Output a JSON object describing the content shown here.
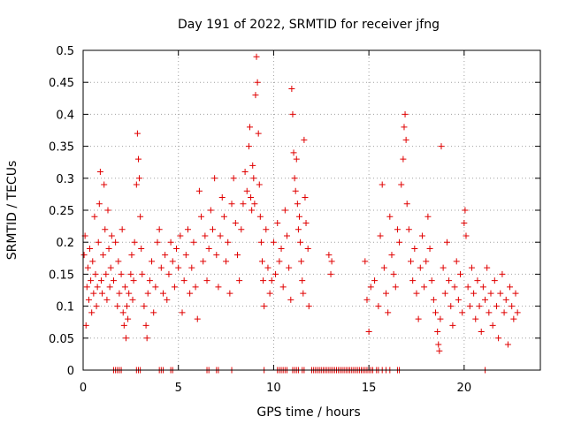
{
  "chart_data": {
    "type": "scatter",
    "title": "Day 191 of 2022, SRMTID for receiver jfng",
    "xlabel": "GPS time / hours",
    "ylabel": "SRMTID / TECUs",
    "xlim": [
      0,
      24
    ],
    "ylim": [
      0,
      0.5
    ],
    "x_ticks": [
      0,
      5,
      10,
      15,
      20
    ],
    "x_tick_labels": [
      "0",
      "5",
      "10",
      "15",
      "20"
    ],
    "y_ticks": [
      0,
      0.05,
      0.1,
      0.15,
      0.2,
      0.25,
      0.3,
      0.35,
      0.4,
      0.45,
      0.5
    ],
    "y_tick_labels": [
      "0",
      "0.05",
      "0.1",
      "0.15",
      "0.2",
      "0.25",
      "0.3",
      "0.35",
      "0.4",
      "0.45",
      "0.5"
    ],
    "grid": true,
    "marker": "+",
    "marker_color": "#e00000",
    "series": [
      {
        "name": "SRMTID",
        "points": [
          [
            0.05,
            0.18
          ],
          [
            0.1,
            0.21
          ],
          [
            0.15,
            0.07
          ],
          [
            0.2,
            0.13
          ],
          [
            0.25,
            0.16
          ],
          [
            0.3,
            0.11
          ],
          [
            0.35,
            0.19
          ],
          [
            0.4,
            0.14
          ],
          [
            0.45,
            0.09
          ],
          [
            0.5,
            0.17
          ],
          [
            0.55,
            0.12
          ],
          [
            0.6,
            0.24
          ],
          [
            0.65,
            0.15
          ],
          [
            0.7,
            0.1
          ],
          [
            0.75,
            0.13
          ],
          [
            0.8,
            0.2
          ],
          [
            0.85,
            0.26
          ],
          [
            0.9,
            0.31
          ],
          [
            0.95,
            0.14
          ],
          [
            1.0,
            0.12
          ],
          [
            1.05,
            0.18
          ],
          [
            1.1,
            0.29
          ],
          [
            1.15,
            0.22
          ],
          [
            1.2,
            0.15
          ],
          [
            1.25,
            0.11
          ],
          [
            1.3,
            0.25
          ],
          [
            1.35,
            0.19
          ],
          [
            1.4,
            0.13
          ],
          [
            1.45,
            0.16
          ],
          [
            1.5,
            0.21
          ],
          [
            1.6,
            0.14
          ],
          [
            1.7,
            0.2
          ],
          [
            1.8,
            0.1
          ],
          [
            1.85,
            0.17
          ],
          [
            1.9,
            0.12
          ],
          [
            2.0,
            0.15
          ],
          [
            2.05,
            0.22
          ],
          [
            2.1,
            0.09
          ],
          [
            2.15,
            0.07
          ],
          [
            2.2,
            0.13
          ],
          [
            2.25,
            0.05
          ],
          [
            2.3,
            0.1
          ],
          [
            2.35,
            0.08
          ],
          [
            2.4,
            0.12
          ],
          [
            2.5,
            0.15
          ],
          [
            2.55,
            0.18
          ],
          [
            2.6,
            0.11
          ],
          [
            2.65,
            0.14
          ],
          [
            2.7,
            0.2
          ],
          [
            2.8,
            0.29
          ],
          [
            2.85,
            0.37
          ],
          [
            2.9,
            0.33
          ],
          [
            2.95,
            0.3
          ],
          [
            3.0,
            0.24
          ],
          [
            3.05,
            0.19
          ],
          [
            3.1,
            0.15
          ],
          [
            3.2,
            0.1
          ],
          [
            3.3,
            0.07
          ],
          [
            3.35,
            0.05
          ],
          [
            3.4,
            0.12
          ],
          [
            3.5,
            0.14
          ],
          [
            3.6,
            0.17
          ],
          [
            3.7,
            0.09
          ],
          [
            3.8,
            0.13
          ],
          [
            3.9,
            0.2
          ],
          [
            4.0,
            0.22
          ],
          [
            4.1,
            0.16
          ],
          [
            4.2,
            0.12
          ],
          [
            4.3,
            0.18
          ],
          [
            4.4,
            0.11
          ],
          [
            4.5,
            0.15
          ],
          [
            4.6,
            0.2
          ],
          [
            4.7,
            0.17
          ],
          [
            4.8,
            0.13
          ],
          [
            4.9,
            0.19
          ],
          [
            5.0,
            0.16
          ],
          [
            5.1,
            0.21
          ],
          [
            5.2,
            0.09
          ],
          [
            5.3,
            0.14
          ],
          [
            5.4,
            0.18
          ],
          [
            5.5,
            0.22
          ],
          [
            5.6,
            0.12
          ],
          [
            5.7,
            0.16
          ],
          [
            5.8,
            0.2
          ],
          [
            5.9,
            0.13
          ],
          [
            6.0,
            0.08
          ],
          [
            6.1,
            0.28
          ],
          [
            6.2,
            0.24
          ],
          [
            6.3,
            0.17
          ],
          [
            6.4,
            0.21
          ],
          [
            6.5,
            0.14
          ],
          [
            6.6,
            0.19
          ],
          [
            6.7,
            0.25
          ],
          [
            6.8,
            0.22
          ],
          [
            6.9,
            0.3
          ],
          [
            7.0,
            0.18
          ],
          [
            7.1,
            0.13
          ],
          [
            7.2,
            0.21
          ],
          [
            7.3,
            0.27
          ],
          [
            7.4,
            0.24
          ],
          [
            7.5,
            0.17
          ],
          [
            7.6,
            0.2
          ],
          [
            7.7,
            0.12
          ],
          [
            7.8,
            0.26
          ],
          [
            7.9,
            0.3
          ],
          [
            8.0,
            0.23
          ],
          [
            8.1,
            0.18
          ],
          [
            8.2,
            0.14
          ],
          [
            8.3,
            0.22
          ],
          [
            8.4,
            0.26
          ],
          [
            8.5,
            0.31
          ],
          [
            8.6,
            0.28
          ],
          [
            8.7,
            0.35
          ],
          [
            8.75,
            0.38
          ],
          [
            8.8,
            0.27
          ],
          [
            8.85,
            0.25
          ],
          [
            8.9,
            0.32
          ],
          [
            8.95,
            0.3
          ],
          [
            9.0,
            0.26
          ],
          [
            9.05,
            0.43
          ],
          [
            9.1,
            0.49
          ],
          [
            9.15,
            0.45
          ],
          [
            9.2,
            0.37
          ],
          [
            9.25,
            0.29
          ],
          [
            9.3,
            0.24
          ],
          [
            9.35,
            0.2
          ],
          [
            9.4,
            0.17
          ],
          [
            9.45,
            0.14
          ],
          [
            9.5,
            0.1
          ],
          [
            9.6,
            0.22
          ],
          [
            9.7,
            0.16
          ],
          [
            9.8,
            0.12
          ],
          [
            9.9,
            0.14
          ],
          [
            10.0,
            0.2
          ],
          [
            10.1,
            0.15
          ],
          [
            10.2,
            0.23
          ],
          [
            10.3,
            0.17
          ],
          [
            10.4,
            0.19
          ],
          [
            10.5,
            0.13
          ],
          [
            10.6,
            0.25
          ],
          [
            10.7,
            0.21
          ],
          [
            10.8,
            0.16
          ],
          [
            10.9,
            0.11
          ],
          [
            10.95,
            0.44
          ],
          [
            11.0,
            0.4
          ],
          [
            11.05,
            0.34
          ],
          [
            11.1,
            0.3
          ],
          [
            11.15,
            0.28
          ],
          [
            11.2,
            0.33
          ],
          [
            11.25,
            0.26
          ],
          [
            11.3,
            0.22
          ],
          [
            11.35,
            0.24
          ],
          [
            11.4,
            0.2
          ],
          [
            11.45,
            0.17
          ],
          [
            11.5,
            0.14
          ],
          [
            11.55,
            0.12
          ],
          [
            11.6,
            0.36
          ],
          [
            11.65,
            0.27
          ],
          [
            11.7,
            0.23
          ],
          [
            11.8,
            0.19
          ],
          [
            11.85,
            0.1
          ],
          [
            12.9,
            0.18
          ],
          [
            13.0,
            0.15
          ],
          [
            13.05,
            0.17
          ],
          [
            14.8,
            0.17
          ],
          [
            14.9,
            0.11
          ],
          [
            15.0,
            0.06
          ],
          [
            15.1,
            0.13
          ],
          [
            15.3,
            0.14
          ],
          [
            15.5,
            0.1
          ],
          [
            15.6,
            0.21
          ],
          [
            15.7,
            0.29
          ],
          [
            15.8,
            0.16
          ],
          [
            15.9,
            0.12
          ],
          [
            16.0,
            0.09
          ],
          [
            16.1,
            0.24
          ],
          [
            16.2,
            0.18
          ],
          [
            16.3,
            0.15
          ],
          [
            16.4,
            0.13
          ],
          [
            16.5,
            0.22
          ],
          [
            16.6,
            0.2
          ],
          [
            16.7,
            0.29
          ],
          [
            16.8,
            0.33
          ],
          [
            16.85,
            0.38
          ],
          [
            16.9,
            0.4
          ],
          [
            16.95,
            0.36
          ],
          [
            17.0,
            0.26
          ],
          [
            17.1,
            0.22
          ],
          [
            17.2,
            0.17
          ],
          [
            17.3,
            0.14
          ],
          [
            17.4,
            0.19
          ],
          [
            17.5,
            0.12
          ],
          [
            17.6,
            0.08
          ],
          [
            17.7,
            0.16
          ],
          [
            17.8,
            0.21
          ],
          [
            17.9,
            0.13
          ],
          [
            18.0,
            0.17
          ],
          [
            18.1,
            0.24
          ],
          [
            18.2,
            0.19
          ],
          [
            18.3,
            0.14
          ],
          [
            18.4,
            0.11
          ],
          [
            18.5,
            0.09
          ],
          [
            18.6,
            0.06
          ],
          [
            18.65,
            0.04
          ],
          [
            18.7,
            0.03
          ],
          [
            18.75,
            0.08
          ],
          [
            18.8,
            0.35
          ],
          [
            18.9,
            0.16
          ],
          [
            19.0,
            0.12
          ],
          [
            19.1,
            0.2
          ],
          [
            19.2,
            0.14
          ],
          [
            19.3,
            0.1
          ],
          [
            19.4,
            0.07
          ],
          [
            19.5,
            0.13
          ],
          [
            19.6,
            0.17
          ],
          [
            19.7,
            0.11
          ],
          [
            19.8,
            0.15
          ],
          [
            19.9,
            0.09
          ],
          [
            20.0,
            0.23
          ],
          [
            20.05,
            0.25
          ],
          [
            20.1,
            0.21
          ],
          [
            20.2,
            0.13
          ],
          [
            20.3,
            0.1
          ],
          [
            20.4,
            0.16
          ],
          [
            20.5,
            0.12
          ],
          [
            20.6,
            0.08
          ],
          [
            20.7,
            0.14
          ],
          [
            20.8,
            0.1
          ],
          [
            20.9,
            0.06
          ],
          [
            21.0,
            0.13
          ],
          [
            21.1,
            0.11
          ],
          [
            21.2,
            0.16
          ],
          [
            21.3,
            0.09
          ],
          [
            21.4,
            0.12
          ],
          [
            21.5,
            0.07
          ],
          [
            21.6,
            0.14
          ],
          [
            21.7,
            0.1
          ],
          [
            21.8,
            0.05
          ],
          [
            21.9,
            0.12
          ],
          [
            22.0,
            0.15
          ],
          [
            22.1,
            0.09
          ],
          [
            22.2,
            0.11
          ],
          [
            22.3,
            0.04
          ],
          [
            22.4,
            0.13
          ],
          [
            22.5,
            0.1
          ],
          [
            22.6,
            0.08
          ],
          [
            22.7,
            0.12
          ],
          [
            22.8,
            0.09
          ]
        ],
        "zero_points_x": [
          1.6,
          1.7,
          1.8,
          1.9,
          2.0,
          2.8,
          2.9,
          3.0,
          4.0,
          4.1,
          4.2,
          4.6,
          4.7,
          6.5,
          6.6,
          7.0,
          7.1,
          7.8,
          9.5,
          10.2,
          10.3,
          10.4,
          10.5,
          10.6,
          10.7,
          11.0,
          11.1,
          11.2,
          11.3,
          11.5,
          11.6,
          12.0,
          12.1,
          12.2,
          12.3,
          12.4,
          12.5,
          12.6,
          12.7,
          12.8,
          12.9,
          13.0,
          13.1,
          13.2,
          13.3,
          13.4,
          13.5,
          13.6,
          13.7,
          13.8,
          13.9,
          14.0,
          14.1,
          14.2,
          14.3,
          14.4,
          14.5,
          14.6,
          14.7,
          14.8,
          14.9,
          15.0,
          15.1,
          15.2,
          15.4,
          15.5,
          15.7,
          15.9,
          16.1,
          16.5,
          16.6,
          21.1
        ]
      }
    ]
  }
}
